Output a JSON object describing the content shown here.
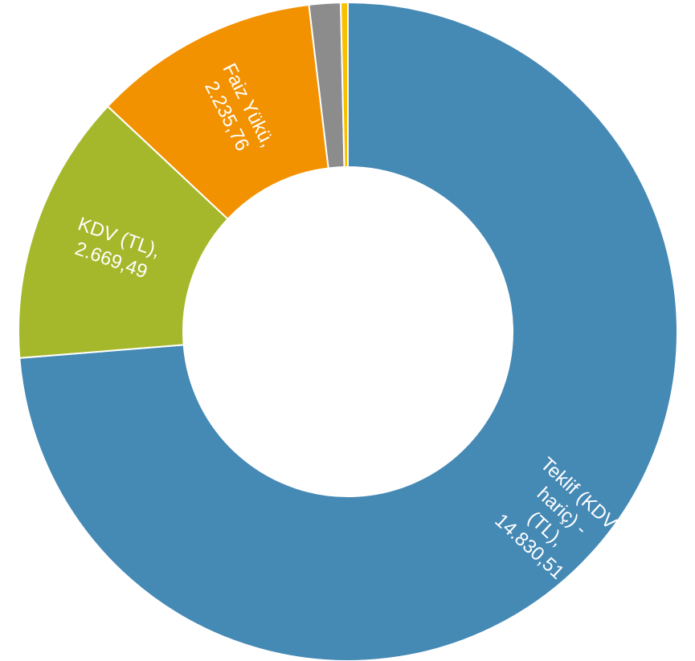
{
  "chart_data": {
    "type": "donut",
    "categories": [
      "Teklif (KDV hariç) - (TL)",
      "KDV (TL)",
      "Faiz Yükü",
      null,
      null
    ],
    "values": [
      14830.51,
      2669.49,
      2235.76,
      310,
      70
    ],
    "value_labels": [
      "14.830,51",
      "2.669,49",
      "2.235,76",
      null,
      null
    ],
    "label_separator": ",",
    "colors": [
      "#4589b5",
      "#a5b82b",
      "#f39200",
      "#8c8c8c",
      "#f9c000"
    ]
  }
}
